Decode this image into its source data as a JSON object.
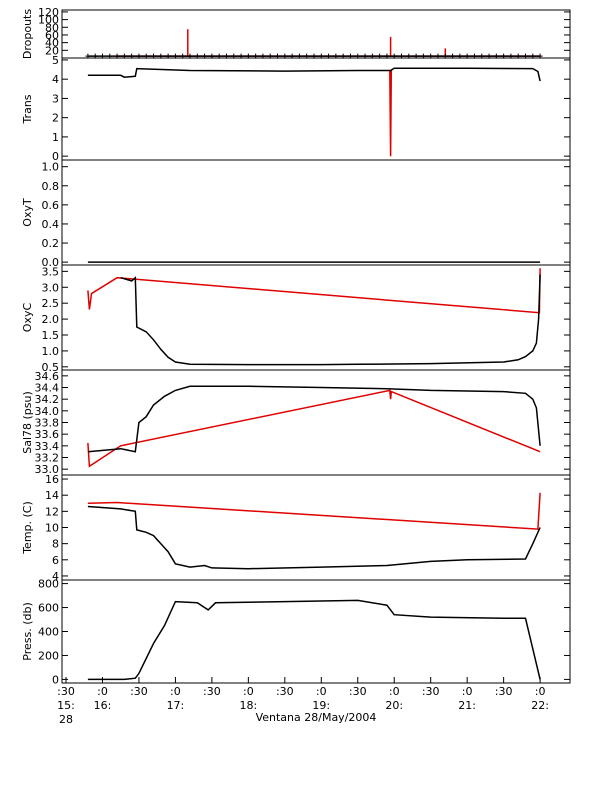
{
  "chart_data": {
    "type": "multi-panel",
    "xlabel": "Ventana 28/May/2004",
    "xlim": [
      15.445,
      22.41
    ],
    "xticks": [
      {
        "value": 15.5,
        "label": [
          ":30",
          "15:",
          "28"
        ]
      },
      {
        "value": 16.0,
        "label": [
          ":0",
          "16:"
        ]
      },
      {
        "value": 16.5,
        "label": [
          ":30"
        ]
      },
      {
        "value": 17.0,
        "label": [
          ":0",
          "17:"
        ]
      },
      {
        "value": 17.5,
        "label": [
          ":30"
        ]
      },
      {
        "value": 18.0,
        "label": [
          ":0",
          "18:"
        ]
      },
      {
        "value": 18.5,
        "label": [
          ":30"
        ]
      },
      {
        "value": 19.0,
        "label": [
          ":0",
          "19:"
        ]
      },
      {
        "value": 19.5,
        "label": [
          ":30"
        ]
      },
      {
        "value": 20.0,
        "label": [
          ":0",
          "20:"
        ]
      },
      {
        "value": 20.5,
        "label": [
          ":30"
        ]
      },
      {
        "value": 21.0,
        "label": [
          ":0",
          "21:"
        ]
      },
      {
        "value": 21.5,
        "label": [
          ":30"
        ]
      },
      {
        "value": 22.0,
        "label": [
          ":0",
          "22:"
        ]
      }
    ],
    "panels": [
      {
        "type": "line",
        "ylabel": "Dropouts",
        "ylim": [
          0,
          125
        ],
        "yticks": [
          20,
          40,
          60,
          80,
          100,
          120
        ],
        "series": [
          {
            "color": "#e00000",
            "x": [
              16.2,
              17.17,
              17.17,
              17.17,
              19.95,
              19.95,
              19.95,
              20.7,
              20.7,
              20.7,
              22.0
            ],
            "values": [
              5,
              5,
              75,
              5,
              5,
              55,
              5,
              5,
              25,
              5,
              5
            ]
          },
          {
            "color": "#000000",
            "marker": "plus",
            "x": [
              15.8,
              15.9,
              16.0,
              16.1,
              16.2,
              16.3,
              16.4,
              16.5,
              16.6,
              16.7,
              16.8,
              16.9,
              17.0,
              17.1,
              17.2,
              17.3,
              17.4,
              17.5,
              17.6,
              17.7,
              17.8,
              17.9,
              18.0,
              18.1,
              18.2,
              18.3,
              18.4,
              18.5,
              18.6,
              18.7,
              18.8,
              18.9,
              19.0,
              19.1,
              19.2,
              19.3,
              19.4,
              19.5,
              19.6,
              19.7,
              19.8,
              19.9,
              20.0,
              20.1,
              20.2,
              20.3,
              20.4,
              20.5,
              20.6,
              20.7,
              20.8,
              20.9,
              21.0,
              21.1,
              21.2,
              21.3,
              21.4,
              21.5,
              21.6,
              21.7,
              21.8,
              21.9,
              22.0
            ],
            "values": [
              5,
              5,
              5,
              5,
              5,
              5,
              5,
              5,
              5,
              5,
              5,
              5,
              5,
              5,
              5,
              5,
              5,
              5,
              5,
              5,
              5,
              5,
              5,
              5,
              5,
              5,
              5,
              5,
              5,
              5,
              5,
              5,
              5,
              5,
              5,
              5,
              5,
              5,
              5,
              5,
              5,
              5,
              5,
              5,
              5,
              5,
              5,
              5,
              5,
              5,
              5,
              5,
              5,
              5,
              5,
              5,
              5,
              5,
              5,
              5,
              5,
              5,
              5
            ]
          }
        ]
      },
      {
        "type": "line",
        "ylabel": "Trans",
        "ylim": [
          -0.2,
          5.1
        ],
        "yticks": [
          0,
          1,
          2,
          3,
          4,
          5
        ],
        "series": [
          {
            "color": "#e00000",
            "x": [
              19.94,
              19.95,
              19.96
            ],
            "values": [
              4.45,
              0,
              4.5
            ]
          },
          {
            "color": "#000000",
            "x": [
              15.8,
              16.25,
              16.3,
              16.45,
              16.47,
              17.2,
              18.5,
              19.5,
              19.95,
              20.0,
              21.0,
              21.9,
              21.97,
              22.0
            ],
            "values": [
              4.2,
              4.2,
              4.1,
              4.15,
              4.55,
              4.45,
              4.42,
              4.45,
              4.45,
              4.57,
              4.57,
              4.55,
              4.4,
              3.9
            ]
          }
        ]
      },
      {
        "type": "line",
        "ylabel": "OxyT",
        "ylim": [
          -0.03,
          1.07
        ],
        "yticks": [
          0.0,
          0.2,
          0.4,
          0.6,
          0.8,
          1.0
        ],
        "ytick_labels": [
          "0.0",
          "0.2",
          "0.4",
          "0.6",
          "0.8",
          "1.0"
        ],
        "series": [
          {
            "color": "#000000",
            "x": [
              15.8,
              22.0
            ],
            "values": [
              0,
              0
            ]
          }
        ]
      },
      {
        "type": "line",
        "ylabel": "OxyC",
        "ylim": [
          0.4,
          3.7
        ],
        "yticks": [
          0.5,
          1.0,
          1.5,
          2.0,
          2.5,
          3.0,
          3.5
        ],
        "ytick_labels": [
          "0.5",
          "1.0",
          "1.5",
          "2.0",
          "2.5",
          "3.0",
          "3.5"
        ],
        "series": [
          {
            "color": "#e00000",
            "x": [
              15.8,
              15.82,
              15.85,
              16.2,
              21.99,
              22.0
            ],
            "values": [
              2.9,
              2.3,
              2.8,
              3.3,
              2.2,
              3.6
            ]
          },
          {
            "color": "#000000",
            "x": [
              16.25,
              16.4,
              16.45,
              16.47,
              16.6,
              16.7,
              16.8,
              16.9,
              17.0,
              17.2,
              18.0,
              19.0,
              19.5,
              20.5,
              21.5,
              21.7,
              21.8,
              21.9,
              21.95,
              21.98,
              22.0
            ],
            "values": [
              3.3,
              3.2,
              3.3,
              1.75,
              1.6,
              1.35,
              1.05,
              0.8,
              0.65,
              0.58,
              0.57,
              0.57,
              0.58,
              0.6,
              0.65,
              0.72,
              0.82,
              1.0,
              1.25,
              2.0,
              3.4
            ]
          }
        ]
      },
      {
        "type": "line",
        "ylabel": "Sal78 (psu)",
        "ylim": [
          32.9,
          34.7
        ],
        "yticks": [
          33.0,
          33.2,
          33.4,
          33.6,
          33.8,
          34.0,
          34.2,
          34.4,
          34.6
        ],
        "ytick_labels": [
          "33.0",
          "33.2",
          "33.4",
          "33.6",
          "33.8",
          "34.0",
          "34.2",
          "34.4",
          "34.6"
        ],
        "series": [
          {
            "color": "#e00000",
            "x": [
              15.8,
              15.82,
              16.25,
              19.94,
              19.95,
              19.96,
              22.0
            ],
            "values": [
              33.45,
              33.05,
              33.4,
              34.35,
              34.2,
              34.33,
              33.3
            ]
          },
          {
            "color": "#000000",
            "x": [
              15.8,
              16.25,
              16.45,
              16.5,
              16.6,
              16.7,
              16.85,
              17.0,
              17.2,
              18.0,
              19.0,
              19.9,
              20.5,
              21.5,
              21.8,
              21.9,
              21.95,
              22.0
            ],
            "values": [
              33.3,
              33.35,
              33.3,
              33.8,
              33.9,
              34.1,
              34.25,
              34.35,
              34.42,
              34.42,
              34.4,
              34.38,
              34.35,
              34.33,
              34.3,
              34.2,
              34.05,
              33.4
            ]
          }
        ]
      },
      {
        "type": "line",
        "ylabel": "Temp. (C)",
        "ylim": [
          3.5,
          16.5
        ],
        "yticks": [
          4,
          6,
          8,
          10,
          12,
          14,
          16
        ],
        "series": [
          {
            "color": "#e00000",
            "x": [
              15.8,
              16.2,
              21.97,
              22.0
            ],
            "values": [
              13.0,
              13.1,
              9.8,
              14.3
            ]
          },
          {
            "color": "#000000",
            "x": [
              15.8,
              16.25,
              16.45,
              16.47,
              16.6,
              16.7,
              16.9,
              17.0,
              17.2,
              17.4,
              17.5,
              18.0,
              19.0,
              19.9,
              20.5,
              21.0,
              21.8,
              21.9,
              22.0
            ],
            "values": [
              12.6,
              12.3,
              12.0,
              9.7,
              9.4,
              9.0,
              7.0,
              5.5,
              5.1,
              5.3,
              5.0,
              4.9,
              5.1,
              5.3,
              5.8,
              6.0,
              6.1,
              8.0,
              10.0
            ]
          }
        ]
      },
      {
        "type": "line",
        "ylabel": "Press. (db)",
        "ylim": [
          -30,
          830
        ],
        "yticks": [
          0,
          200,
          400,
          600,
          800
        ],
        "series": [
          {
            "color": "#000000",
            "x": [
              15.8,
              16.3,
              16.45,
              16.5,
              16.7,
              16.85,
              17.0,
              17.3,
              17.45,
              17.55,
              18.5,
              19.5,
              19.9,
              20.0,
              20.5,
              21.5,
              21.8,
              22.0
            ],
            "values": [
              0,
              0,
              10,
              50,
              300,
              450,
              650,
              640,
              580,
              640,
              650,
              660,
              620,
              540,
              520,
              510,
              510,
              0
            ]
          }
        ]
      }
    ]
  }
}
